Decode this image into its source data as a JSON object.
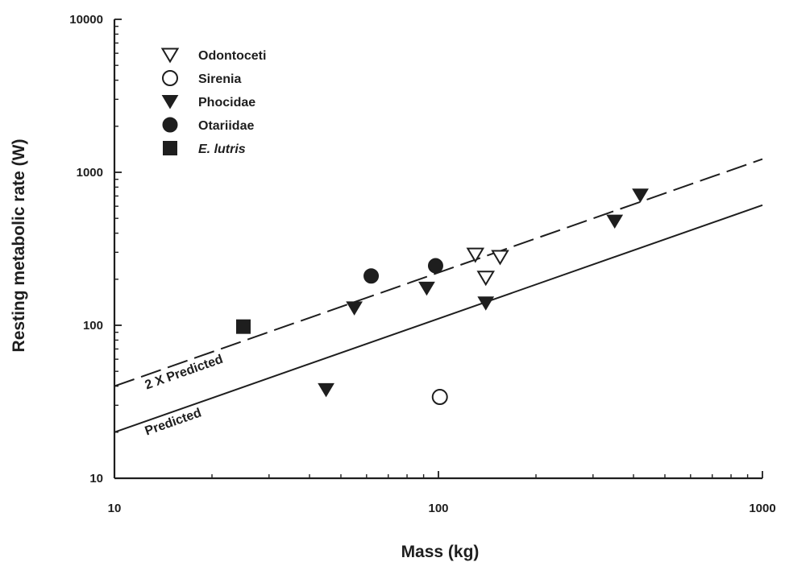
{
  "chart_data": {
    "type": "scatter",
    "title": "",
    "xlabel": "Mass (kg)",
    "ylabel": "Resting metabolic rate (W)",
    "xscale": "log",
    "yscale": "log",
    "xlim": [
      10,
      1000
    ],
    "ylim": [
      10,
      10000
    ],
    "x_ticks": [
      {
        "value": 10,
        "label": "10"
      },
      {
        "value": 100,
        "label": "100"
      },
      {
        "value": 1000,
        "label": "1000"
      }
    ],
    "y_ticks": [
      {
        "value": 10,
        "label": "10"
      },
      {
        "value": 100,
        "label": "100"
      },
      {
        "value": 1000,
        "label": "1000"
      },
      {
        "value": 10000,
        "label": "10000"
      }
    ],
    "grid": false,
    "legend_position": "top-left",
    "series": [
      {
        "name": "Odontoceti",
        "marker": "triangle-down-open",
        "points": [
          {
            "x": 130,
            "y": 290
          },
          {
            "x": 155,
            "y": 280
          },
          {
            "x": 140,
            "y": 205
          }
        ]
      },
      {
        "name": "Sirenia",
        "marker": "circle-open",
        "points": [
          {
            "x": 101,
            "y": 34
          }
        ]
      },
      {
        "name": "Phocidae",
        "marker": "triangle-down-filled",
        "points": [
          {
            "x": 45,
            "y": 38
          },
          {
            "x": 55,
            "y": 130
          },
          {
            "x": 92,
            "y": 175
          },
          {
            "x": 140,
            "y": 140
          },
          {
            "x": 350,
            "y": 480
          },
          {
            "x": 420,
            "y": 710
          }
        ]
      },
      {
        "name": "Otariidae",
        "marker": "circle-filled",
        "points": [
          {
            "x": 62,
            "y": 210
          },
          {
            "x": 98,
            "y": 245
          }
        ]
      },
      {
        "name": "E. lutris",
        "marker": "square-filled",
        "italic": true,
        "points": [
          {
            "x": 25,
            "y": 98
          }
        ]
      }
    ],
    "lines": [
      {
        "label": "Predicted",
        "style": "solid",
        "x": [
          10,
          1000
        ],
        "y": [
          20,
          610
        ]
      },
      {
        "label": "2 X Predicted",
        "style": "dashed",
        "x": [
          10,
          1000
        ],
        "y": [
          40,
          1220
        ]
      }
    ]
  },
  "colors": {
    "ink": "#1e1e1e",
    "background": "#ffffff"
  }
}
